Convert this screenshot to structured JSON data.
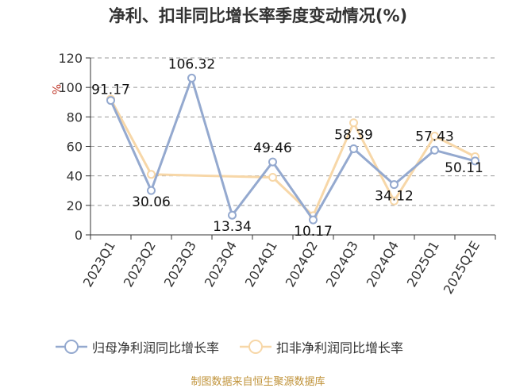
{
  "title": "净利、扣非同比增长率季度变动情况(%)",
  "source": "制图数据来自恒生聚源数据库",
  "chart_data": {
    "type": "line",
    "title": "净利、扣非同比增长率季度变动情况(%)",
    "ylabel": "%",
    "xlabel": "",
    "ylim": [
      0,
      120
    ],
    "yticks": [
      0,
      20,
      40,
      60,
      80,
      100,
      120
    ],
    "grid": "horizontal dashed",
    "legend": "bottom",
    "categories": [
      "2023Q1",
      "2023Q2",
      "2023Q3",
      "2023Q4",
      "2024Q1",
      "2024Q2",
      "2024Q3",
      "2024Q4",
      "2025Q1",
      "2025Q2E"
    ],
    "series": [
      {
        "name": "归母净利润同比增长率",
        "color": "#94a9cf",
        "values": [
          91.17,
          30.06,
          106.32,
          13.34,
          49.46,
          10.17,
          58.39,
          34.12,
          57.43,
          50.11
        ]
      },
      {
        "name": "扣非净利润同比增长率",
        "color": "#f7d7a8",
        "values": [
          92.0,
          41.0,
          null,
          null,
          39.0,
          13.0,
          76.0,
          23.0,
          67.0,
          53.0
        ]
      }
    ]
  }
}
